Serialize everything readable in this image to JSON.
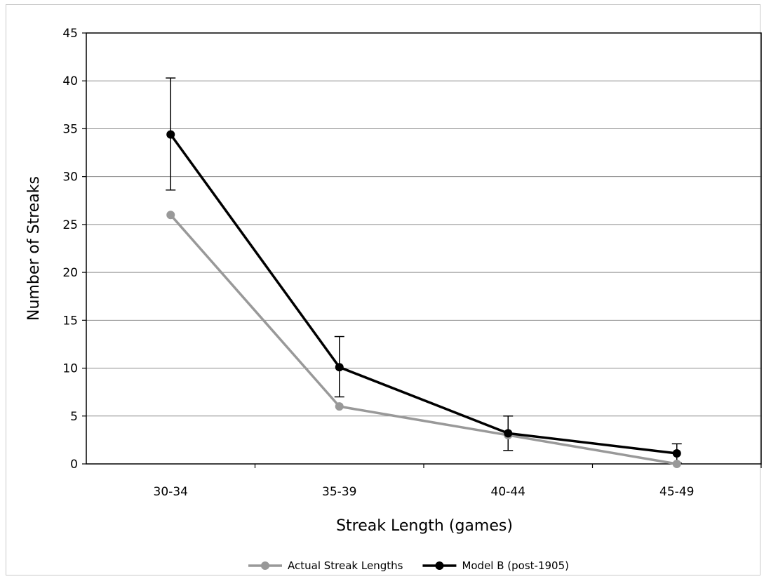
{
  "chart_data": {
    "type": "line",
    "title": "",
    "xlabel": "Streak Length (games)",
    "ylabel": "Number of Streaks",
    "categories": [
      "30-34",
      "35-39",
      "40-44",
      "45-49"
    ],
    "ylim": [
      0,
      45
    ],
    "yticks": [
      0,
      5,
      10,
      15,
      20,
      25,
      30,
      35,
      40,
      45
    ],
    "grid": true,
    "legend_position": "bottom",
    "series": [
      {
        "name": "Actual Streak Lengths",
        "color": "#999999",
        "values": [
          26,
          6,
          3,
          0
        ]
      },
      {
        "name": "Model B (post-1905)",
        "color": "#000000",
        "values": [
          34.4,
          10.1,
          3.2,
          1.1
        ],
        "error_low": [
          28.6,
          7.0,
          1.4,
          0.1
        ],
        "error_high": [
          40.3,
          13.3,
          5.0,
          2.1
        ]
      }
    ]
  }
}
